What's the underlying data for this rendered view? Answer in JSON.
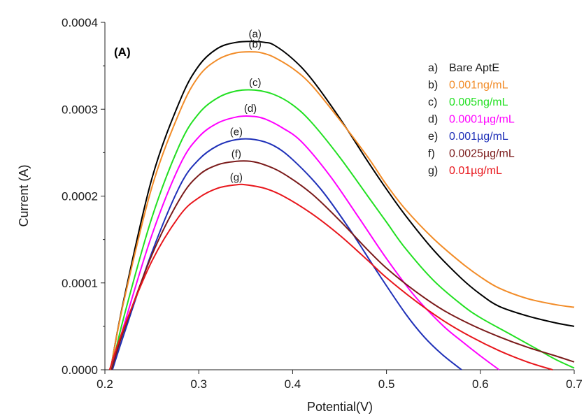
{
  "chart_data": {
    "type": "line",
    "panel_label": "(A)",
    "title": "",
    "xlabel": "Potential(V)",
    "ylabel": "Current (A)",
    "xlim": [
      0.2,
      0.7
    ],
    "ylim": [
      0,
      0.0004
    ],
    "x_ticks": [
      "0.2",
      "0.3",
      "0.4",
      "0.5",
      "0.6",
      "0.7"
    ],
    "y_ticks": [
      "0.0000",
      "0.0001",
      "0.0002",
      "0.0003",
      "0.0004"
    ],
    "legend": {
      "placement": "top-right"
    },
    "series": [
      {
        "key": "a",
        "curve_label": "(a)",
        "legend_letter": "a)",
        "name": "Bare AptE",
        "color": "#000000",
        "x": [
          0.206,
          0.22,
          0.25,
          0.28,
          0.3,
          0.32,
          0.34,
          0.36,
          0.37,
          0.38,
          0.4,
          0.42,
          0.45,
          0.48,
          0.5,
          0.52,
          0.55,
          0.58,
          0.6,
          0.62,
          0.65,
          0.68,
          0.7
        ],
        "y": [
          0.0,
          8e-05,
          0.00022,
          0.00031,
          0.00035,
          0.00037,
          0.000377,
          0.000378,
          0.000377,
          0.000374,
          0.000358,
          0.000335,
          0.00029,
          0.00024,
          0.000208,
          0.000178,
          0.000138,
          0.000105,
          8.7e-05,
          7.3e-05,
          6.2e-05,
          5.4e-05,
          5e-05
        ]
      },
      {
        "key": "b",
        "curve_label": "(b)",
        "legend_letter": "b)",
        "name": "0.001ng/mL",
        "color": "#f28c28",
        "x": [
          0.206,
          0.22,
          0.25,
          0.28,
          0.3,
          0.32,
          0.34,
          0.36,
          0.37,
          0.38,
          0.4,
          0.42,
          0.45,
          0.48,
          0.5,
          0.52,
          0.55,
          0.58,
          0.6,
          0.62,
          0.65,
          0.68,
          0.7
        ],
        "y": [
          0.0,
          7.8e-05,
          0.00021,
          0.000298,
          0.000338,
          0.000357,
          0.000365,
          0.000366,
          0.000364,
          0.00036,
          0.000347,
          0.000328,
          0.000288,
          0.000245,
          0.000213,
          0.000185,
          0.000151,
          0.000123,
          0.000107,
          9.4e-05,
          8.2e-05,
          7.5e-05,
          7.2e-05
        ]
      },
      {
        "key": "c",
        "curve_label": "(c)",
        "legend_letter": "c)",
        "name": "0.005ng/mL",
        "color": "#22e022",
        "x": [
          0.207,
          0.22,
          0.25,
          0.28,
          0.3,
          0.32,
          0.34,
          0.36,
          0.38,
          0.4,
          0.42,
          0.45,
          0.48,
          0.5,
          0.52,
          0.55,
          0.58,
          0.6,
          0.63,
          0.66,
          0.68,
          0.7
        ],
        "y": [
          0.0,
          6e-05,
          0.000175,
          0.00026,
          0.000295,
          0.000313,
          0.000321,
          0.000322,
          0.000317,
          0.000305,
          0.000285,
          0.000245,
          0.0002,
          0.00017,
          0.00014,
          0.000103,
          7.5e-05,
          6e-05,
          4.2e-05,
          2.4e-05,
          1.2e-05,
          2e-06
        ]
      },
      {
        "key": "d",
        "curve_label": "(d)",
        "legend_letter": "d)",
        "name": "0.0001µg/mL",
        "color": "#ff00ff",
        "x": [
          0.207,
          0.22,
          0.25,
          0.28,
          0.3,
          0.32,
          0.34,
          0.355,
          0.37,
          0.39,
          0.41,
          0.44,
          0.47,
          0.5,
          0.53,
          0.56,
          0.58,
          0.6,
          0.62
        ],
        "y": [
          0.0,
          5e-05,
          0.000155,
          0.000236,
          0.000268,
          0.000284,
          0.000291,
          0.000292,
          0.000289,
          0.000278,
          0.000262,
          0.000223,
          0.000176,
          0.000128,
          8.5e-05,
          5.1e-05,
          3.3e-05,
          1.6e-05,
          0.0
        ]
      },
      {
        "key": "e",
        "curve_label": "(e)",
        "legend_letter": "e)",
        "name": "0.001µg/mL",
        "color": "#1f30b8",
        "x": [
          0.208,
          0.22,
          0.25,
          0.28,
          0.3,
          0.32,
          0.34,
          0.36,
          0.38,
          0.4,
          0.43,
          0.46,
          0.49,
          0.52,
          0.54,
          0.56,
          0.58
        ],
        "y": [
          0.0,
          4e-05,
          0.000135,
          0.000212,
          0.000242,
          0.000258,
          0.000265,
          0.000265,
          0.000258,
          0.000242,
          0.000208,
          0.000163,
          0.000113,
          6.5e-05,
          3.8e-05,
          1.7e-05,
          0.0
        ]
      },
      {
        "key": "f",
        "curve_label": "(f)",
        "legend_letter": "f)",
        "name": "0.0025µg/mL",
        "color": "#7a1a1a",
        "x": [
          0.207,
          0.22,
          0.25,
          0.28,
          0.3,
          0.32,
          0.34,
          0.355,
          0.37,
          0.39,
          0.42,
          0.45,
          0.48,
          0.5,
          0.53,
          0.56,
          0.59,
          0.62,
          0.65,
          0.68,
          0.7
        ],
        "y": [
          0.0,
          4.5e-05,
          0.000132,
          0.000197,
          0.000224,
          0.000236,
          0.00024,
          0.00024,
          0.000236,
          0.000226,
          0.000203,
          0.000172,
          0.000138,
          0.000117,
          9.1e-05,
          6.9e-05,
          5.2e-05,
          3.8e-05,
          2.6e-05,
          1.6e-05,
          9e-06
        ]
      },
      {
        "key": "g",
        "curve_label": "(g)",
        "legend_letter": "g)",
        "name": "0.01µg/mL",
        "color": "#e8151b",
        "x": [
          0.205,
          0.22,
          0.25,
          0.28,
          0.3,
          0.32,
          0.34,
          0.35,
          0.37,
          0.39,
          0.42,
          0.45,
          0.48,
          0.5,
          0.53,
          0.56,
          0.59,
          0.62,
          0.65,
          0.677
        ],
        "y": [
          0.0,
          4.8e-05,
          0.000125,
          0.000178,
          0.000198,
          0.000209,
          0.000213,
          0.000213,
          0.000209,
          0.0002,
          0.00018,
          0.000155,
          0.000126,
          0.000106,
          8e-05,
          5.7e-05,
          3.8e-05,
          2.2e-05,
          9e-06,
          0.0
        ]
      }
    ]
  }
}
